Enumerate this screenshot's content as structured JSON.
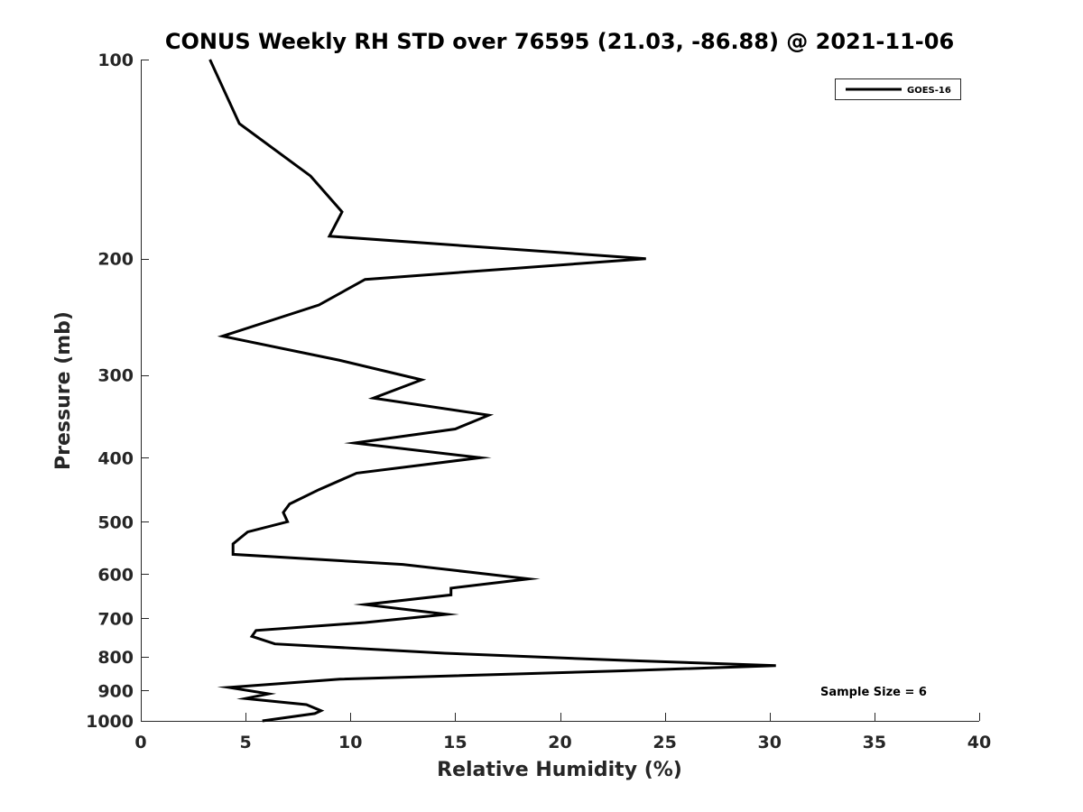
{
  "chart_data": {
    "type": "line",
    "title": "CONUS Weekly RH STD over 76595 (21.03, -86.88) @ 2021-11-06",
    "xlabel": "Relative Humidity (%)",
    "ylabel": "Pressure (mb)",
    "xlim": [
      0,
      40
    ],
    "ylim": [
      100,
      1000
    ],
    "y_scale": "log",
    "y_reversed": true,
    "x_ticks": [
      "0",
      "5",
      "10",
      "15",
      "20",
      "25",
      "30",
      "35",
      "40"
    ],
    "y_ticks": [
      "100",
      "200",
      "300",
      "400",
      "500",
      "600",
      "700",
      "800",
      "900",
      "1000"
    ],
    "grid": false,
    "legend_position": "top-right",
    "annotation": "Sample Size = 6",
    "series": [
      {
        "name": "GOES-16",
        "color": "#000000",
        "points": [
          [
            3.3,
            100
          ],
          [
            4.7,
            125
          ],
          [
            8.1,
            150
          ],
          [
            9.6,
            170
          ],
          [
            9.0,
            185
          ],
          [
            24.1,
            200
          ],
          [
            10.7,
            215
          ],
          [
            8.5,
            235
          ],
          [
            3.9,
            262
          ],
          [
            9.5,
            285
          ],
          [
            13.4,
            305
          ],
          [
            11.1,
            325
          ],
          [
            16.6,
            345
          ],
          [
            15.0,
            362
          ],
          [
            10.2,
            380
          ],
          [
            16.2,
            400
          ],
          [
            10.3,
            422
          ],
          [
            8.5,
            447
          ],
          [
            7.1,
            470
          ],
          [
            6.8,
            484
          ],
          [
            7.0,
            500
          ],
          [
            5.1,
            518
          ],
          [
            4.4,
            540
          ],
          [
            4.4,
            560
          ],
          [
            12.5,
            580
          ],
          [
            18.5,
            610
          ],
          [
            14.8,
            630
          ],
          [
            14.8,
            645
          ],
          [
            10.7,
            667
          ],
          [
            14.6,
            690
          ],
          [
            10.7,
            710
          ],
          [
            5.5,
            730
          ],
          [
            5.3,
            745
          ],
          [
            6.4,
            765
          ],
          [
            14.5,
            790
          ],
          [
            23.0,
            810
          ],
          [
            30.3,
            825
          ],
          [
            23.0,
            840
          ],
          [
            9.5,
            865
          ],
          [
            4.2,
            890
          ],
          [
            6.1,
            910
          ],
          [
            5.0,
            925
          ],
          [
            7.9,
            945
          ],
          [
            8.6,
            965
          ],
          [
            8.3,
            975
          ],
          [
            5.8,
            1000
          ]
        ]
      }
    ]
  }
}
